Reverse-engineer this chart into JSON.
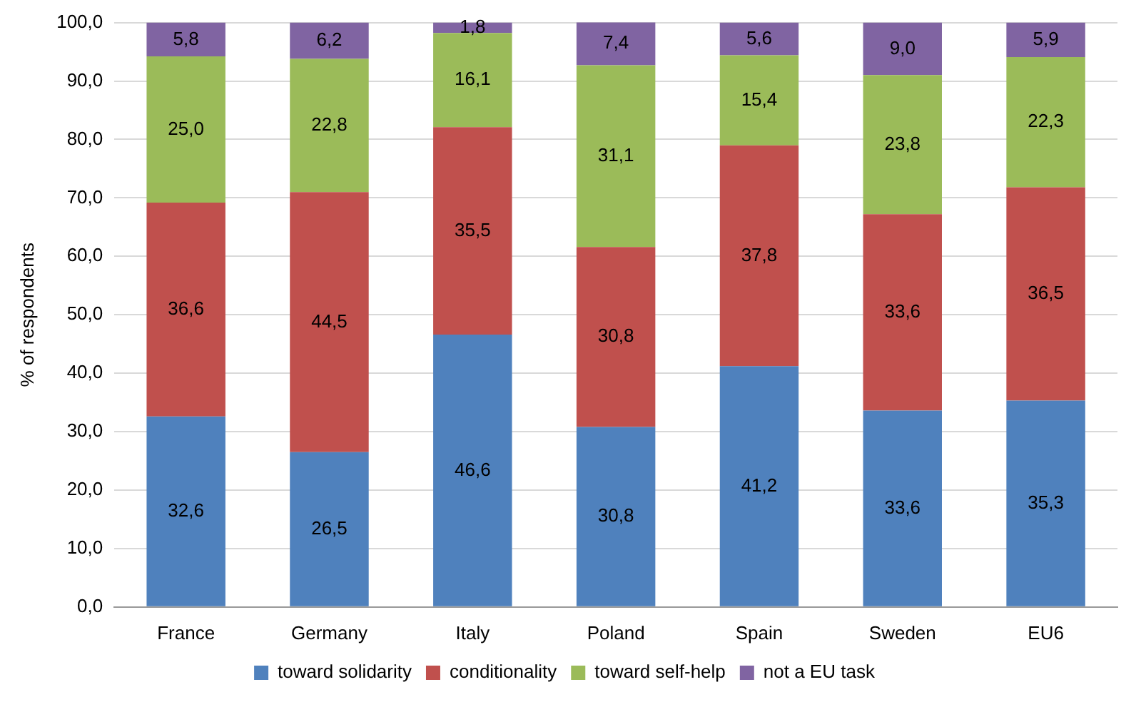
{
  "chart_data": {
    "type": "bar",
    "stacked": true,
    "ylabel": "% of respondents",
    "categories": [
      "France",
      "Germany",
      "Italy",
      "Poland",
      "Spain",
      "Sweden",
      "EU6"
    ],
    "series": [
      {
        "name": "toward solidarity",
        "color": "#4f81bd",
        "values": [
          32.6,
          26.5,
          46.6,
          30.8,
          41.2,
          33.6,
          35.3
        ],
        "value_labels": [
          "32,6",
          "26,5",
          "46,6",
          "30,8",
          "41,2",
          "33,6",
          "35,3"
        ]
      },
      {
        "name": "conditionality",
        "color": "#c0504d",
        "values": [
          36.6,
          44.5,
          35.5,
          30.8,
          37.8,
          33.6,
          36.5
        ],
        "value_labels": [
          "36,6",
          "44,5",
          "35,5",
          "30,8",
          "37,8",
          "33,6",
          "36,5"
        ]
      },
      {
        "name": "toward self-help",
        "color": "#9bbb59",
        "values": [
          25.0,
          22.8,
          16.1,
          31.1,
          15.4,
          23.8,
          22.3
        ],
        "value_labels": [
          "25,0",
          "22,8",
          "16,1",
          "31,1",
          "15,4",
          "23,8",
          "22,3"
        ]
      },
      {
        "name": "not a EU task",
        "color": "#8064a2",
        "values": [
          5.8,
          6.2,
          1.8,
          7.4,
          5.6,
          9.0,
          5.9
        ],
        "value_labels": [
          "5,8",
          "6,2",
          "1,8",
          "7,4",
          "5,6",
          "9,0",
          "5,9"
        ]
      }
    ],
    "ylim": [
      0,
      100
    ],
    "yticks": [
      {
        "value": 0,
        "label": "0,0"
      },
      {
        "value": 10,
        "label": "10,0"
      },
      {
        "value": 20,
        "label": "20,0"
      },
      {
        "value": 30,
        "label": "30,0"
      },
      {
        "value": 40,
        "label": "40,0"
      },
      {
        "value": 50,
        "label": "50,0"
      },
      {
        "value": 60,
        "label": "60,0"
      },
      {
        "value": 70,
        "label": "70,0"
      },
      {
        "value": 80,
        "label": "80,0"
      },
      {
        "value": 90,
        "label": "90,0"
      },
      {
        "value": 100,
        "label": "100,0"
      }
    ],
    "grid": "y",
    "legend": "bottom"
  }
}
